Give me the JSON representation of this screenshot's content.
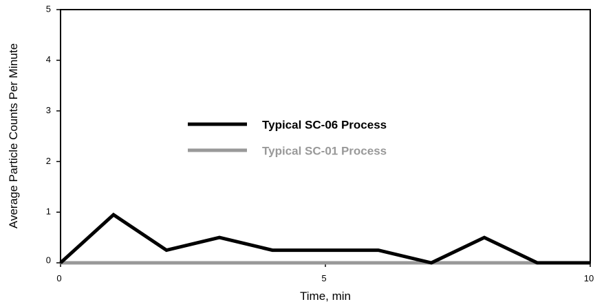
{
  "chart_data": {
    "type": "line",
    "xlabel": "Time, min",
    "ylabel": "Average Particle Counts Per Minute",
    "xlim": [
      0,
      10
    ],
    "ylim": [
      0,
      5
    ],
    "x_ticks": [
      "0",
      "5",
      "10"
    ],
    "y_ticks": [
      "0",
      "1",
      "2",
      "3",
      "4",
      "5"
    ],
    "grid": false,
    "legend": "center-left",
    "series": [
      {
        "name": "Typical SC-06 Process",
        "color": "#000000",
        "x": [
          0,
          1,
          2,
          3,
          4,
          5,
          6,
          7,
          8,
          9,
          10
        ],
        "y": [
          0,
          0.95,
          0.25,
          0.5,
          0.25,
          0.25,
          0.25,
          0,
          0.5,
          0,
          0
        ]
      },
      {
        "name": "Typical SC-01 Process",
        "color": "#999999",
        "x": [
          0,
          10
        ],
        "y": [
          0,
          0
        ]
      }
    ]
  }
}
